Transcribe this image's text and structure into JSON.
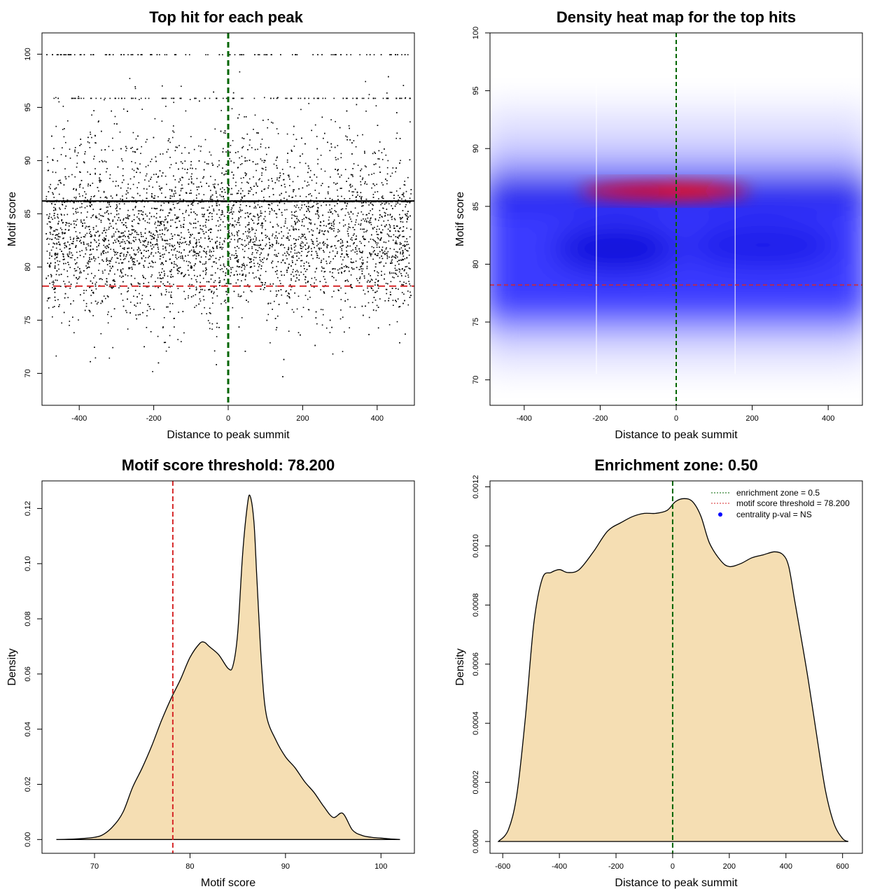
{
  "colors": {
    "threshold_red": "#d62728",
    "center_green": "#006400",
    "fill_wheat": "#f5deb3",
    "points_black": "#000000",
    "heat_low": "#ffffff",
    "heat_mid": "#0000ff",
    "heat_high": "#ff0000"
  },
  "chart_data": [
    {
      "type": "scatter",
      "title": "Top hit for each peak",
      "xlabel": "Distance to peak summit",
      "ylabel": "Motif score",
      "xlim": [
        -500,
        500
      ],
      "ylim": [
        67,
        102
      ],
      "xticks": [
        -400,
        -200,
        0,
        200,
        400
      ],
      "yticks": [
        70,
        75,
        80,
        85,
        90,
        95,
        100
      ],
      "hlines": [
        {
          "y": 86.2,
          "style": "solid",
          "color": "#000000"
        },
        {
          "y": 78.2,
          "style": "dashed",
          "color": "#d62728"
        }
      ],
      "vlines": [
        {
          "x": 0,
          "style": "dashed",
          "color": "#006400"
        }
      ],
      "point_generation": {
        "n": 6000,
        "x_range": [
          -490,
          490
        ],
        "seed": 12345
      }
    },
    {
      "type": "heatmap",
      "title": "Density heat map for the top hits",
      "xlabel": "Distance to peak summit",
      "ylabel": "Motif score",
      "xlim": [
        -490,
        490
      ],
      "ylim": [
        67.8,
        100
      ],
      "xticks": [
        -400,
        -200,
        0,
        200,
        400
      ],
      "yticks": [
        70,
        75,
        80,
        85,
        90,
        95,
        100
      ],
      "hlines": [
        {
          "y": 78.2,
          "style": "dashed",
          "color": "#d62728"
        }
      ],
      "vlines": [
        {
          "x": 0,
          "style": "dashed",
          "color": "#006400"
        }
      ],
      "white_gridlines_x": [
        -210,
        155
      ],
      "color_scale": [
        "#ffffff",
        "#0000ff",
        "#ff0000"
      ]
    },
    {
      "type": "area",
      "title": "Motif score threshold: 78.200",
      "xlabel": "Motif score",
      "ylabel": "Density",
      "xlim": [
        64.5,
        103.5
      ],
      "ylim": [
        -0.005,
        0.13
      ],
      "xticks": [
        70,
        80,
        90,
        100
      ],
      "yticks": [
        0.0,
        0.02,
        0.04,
        0.06,
        0.08,
        0.1,
        0.12
      ],
      "ytick_labels": [
        "0.00",
        "0.02",
        "0.04",
        "0.06",
        "0.08",
        "0.10",
        "0.12"
      ],
      "vlines": [
        {
          "x": 78.2,
          "style": "dashed",
          "color": "#d62728"
        }
      ],
      "x": [
        66,
        68,
        70,
        71,
        72,
        73,
        74,
        75,
        76,
        77,
        78,
        79,
        80,
        81,
        81.5,
        82,
        83,
        84,
        84.5,
        85,
        85.5,
        86,
        86.3,
        86.7,
        87,
        87.5,
        88,
        89,
        90,
        91,
        92,
        93,
        94,
        95,
        96,
        97,
        98,
        99,
        100,
        101,
        102
      ],
      "y": [
        0.0,
        0.0002,
        0.0008,
        0.002,
        0.005,
        0.01,
        0.019,
        0.026,
        0.034,
        0.043,
        0.051,
        0.058,
        0.066,
        0.071,
        0.0715,
        0.07,
        0.067,
        0.062,
        0.063,
        0.075,
        0.103,
        0.121,
        0.1245,
        0.115,
        0.095,
        0.063,
        0.045,
        0.036,
        0.03,
        0.026,
        0.021,
        0.017,
        0.012,
        0.008,
        0.0095,
        0.0035,
        0.0015,
        0.0008,
        0.0005,
        0.0002,
        0.0
      ]
    },
    {
      "type": "area",
      "title": "Enrichment zone: 0.50",
      "xlabel": "Distance to peak summit",
      "ylabel": "Density",
      "xlim": [
        -645,
        670
      ],
      "ylim": [
        -4e-05,
        0.00122
      ],
      "xticks": [
        -600,
        -400,
        -200,
        0,
        200,
        400,
        600
      ],
      "yticks": [
        0.0,
        0.0002,
        0.0004,
        0.0006,
        0.0008,
        0.001,
        0.0012
      ],
      "ytick_labels": [
        "0.0000",
        "0.0002",
        "0.0004",
        "0.0006",
        "0.0008",
        "0.0010",
        "0.0012"
      ],
      "vlines": [
        {
          "x": 0,
          "style": "dashed",
          "color": "#006400"
        }
      ],
      "x": [
        -615,
        -580,
        -550,
        -520,
        -490,
        -460,
        -430,
        -400,
        -370,
        -330,
        -280,
        -230,
        -180,
        -140,
        -100,
        -60,
        -20,
        10,
        40,
        70,
        100,
        130,
        170,
        200,
        240,
        280,
        320,
        360,
        390,
        410,
        430,
        450,
        480,
        510,
        540,
        570,
        600,
        620
      ],
      "y": [
        0.0,
        4e-05,
        0.00016,
        0.00042,
        0.00074,
        0.00089,
        0.00091,
        0.00092,
        0.00091,
        0.00092,
        0.00098,
        0.00105,
        0.00108,
        0.0011,
        0.00111,
        0.00111,
        0.00112,
        0.00115,
        0.00116,
        0.00115,
        0.0011,
        0.00101,
        0.00095,
        0.00093,
        0.00094,
        0.00096,
        0.00097,
        0.00098,
        0.00097,
        0.00093,
        0.00082,
        0.00071,
        0.00054,
        0.00035,
        0.00017,
        6e-05,
        1e-05,
        0.0
      ]
    }
  ],
  "legend": {
    "placement": "top-right",
    "items": [
      {
        "label": "enrichment zone = 0.5",
        "kind": "dotted-line",
        "color": "#006400"
      },
      {
        "label": "motif score threshold = 78.200",
        "kind": "dotted-line",
        "color": "#d62728"
      },
      {
        "label": "centrality p-val = NS",
        "kind": "dot",
        "color": "#0000ff"
      }
    ]
  }
}
